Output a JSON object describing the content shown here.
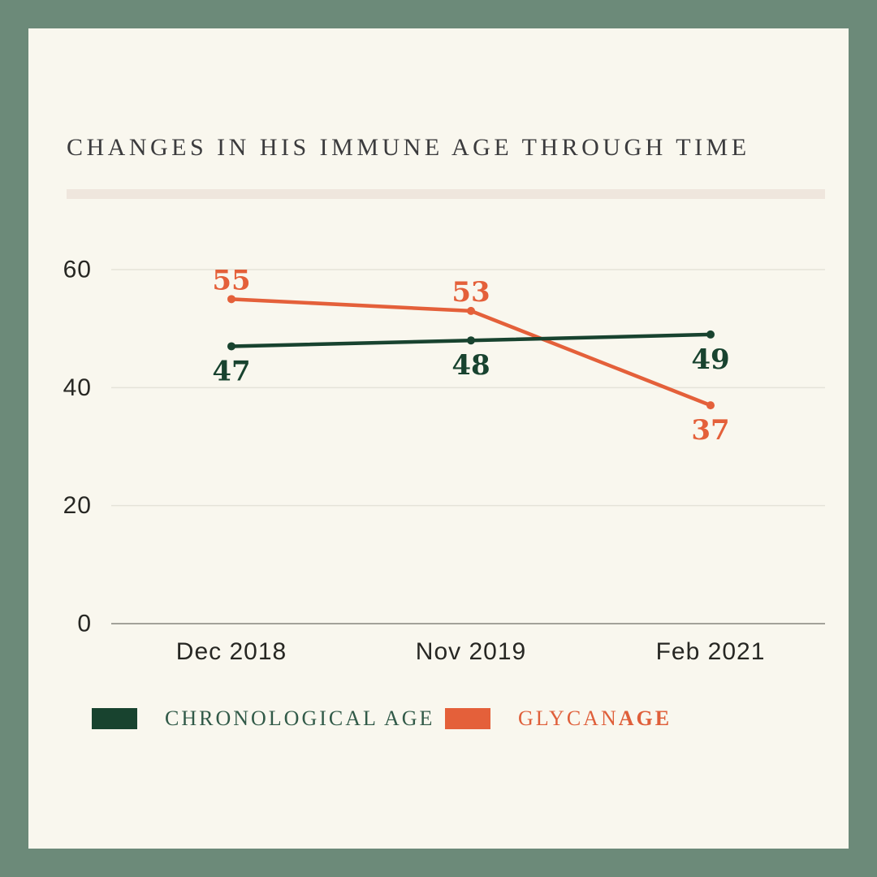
{
  "page": {
    "title": "CHANGES IN HIS IMMUNE AGE THROUGH TIME"
  },
  "colors": {
    "frame": "#6c8a79",
    "background": "#f9f7ee",
    "divider": "#efe6dd",
    "title_text": "#3b3b3d",
    "gridline": "#e5e3d9",
    "axis_line": "#a3a29a",
    "axis_text": "#272723",
    "chronological_age": "#18432f",
    "glycan_age": "#e4603a",
    "legend_chronological_text": "#315a48",
    "legend_glycan_text": "#df5f3a"
  },
  "chart_data": {
    "type": "line",
    "title": "CHANGES IN HIS IMMUNE AGE THROUGH TIME",
    "categories": [
      "Dec 2018",
      "Nov 2019",
      "Feb 2021"
    ],
    "series": [
      {
        "name": "CHRONOLOGICAL AGE",
        "color": "#18432f",
        "values": [
          47,
          48,
          49
        ],
        "label_positions": [
          "below",
          "below",
          "below"
        ]
      },
      {
        "name": "GLYCANAGE",
        "color": "#e4603a",
        "values": [
          55,
          53,
          37
        ],
        "label_positions": [
          "above",
          "above",
          "below"
        ]
      }
    ],
    "ylim": [
      0,
      60
    ],
    "yticks": [
      0,
      20,
      40,
      60
    ],
    "xlabel": "",
    "ylabel": "",
    "grid": "horizontal",
    "point_markers": true,
    "data_labels": true,
    "legend_position": "bottom"
  },
  "legend": {
    "items": [
      {
        "label": "CHRONOLOGICAL AGE",
        "color": "#18432f"
      },
      {
        "label_regular": "GLYCAN",
        "label_bold": "AGE",
        "color": "#e4603a"
      }
    ]
  }
}
